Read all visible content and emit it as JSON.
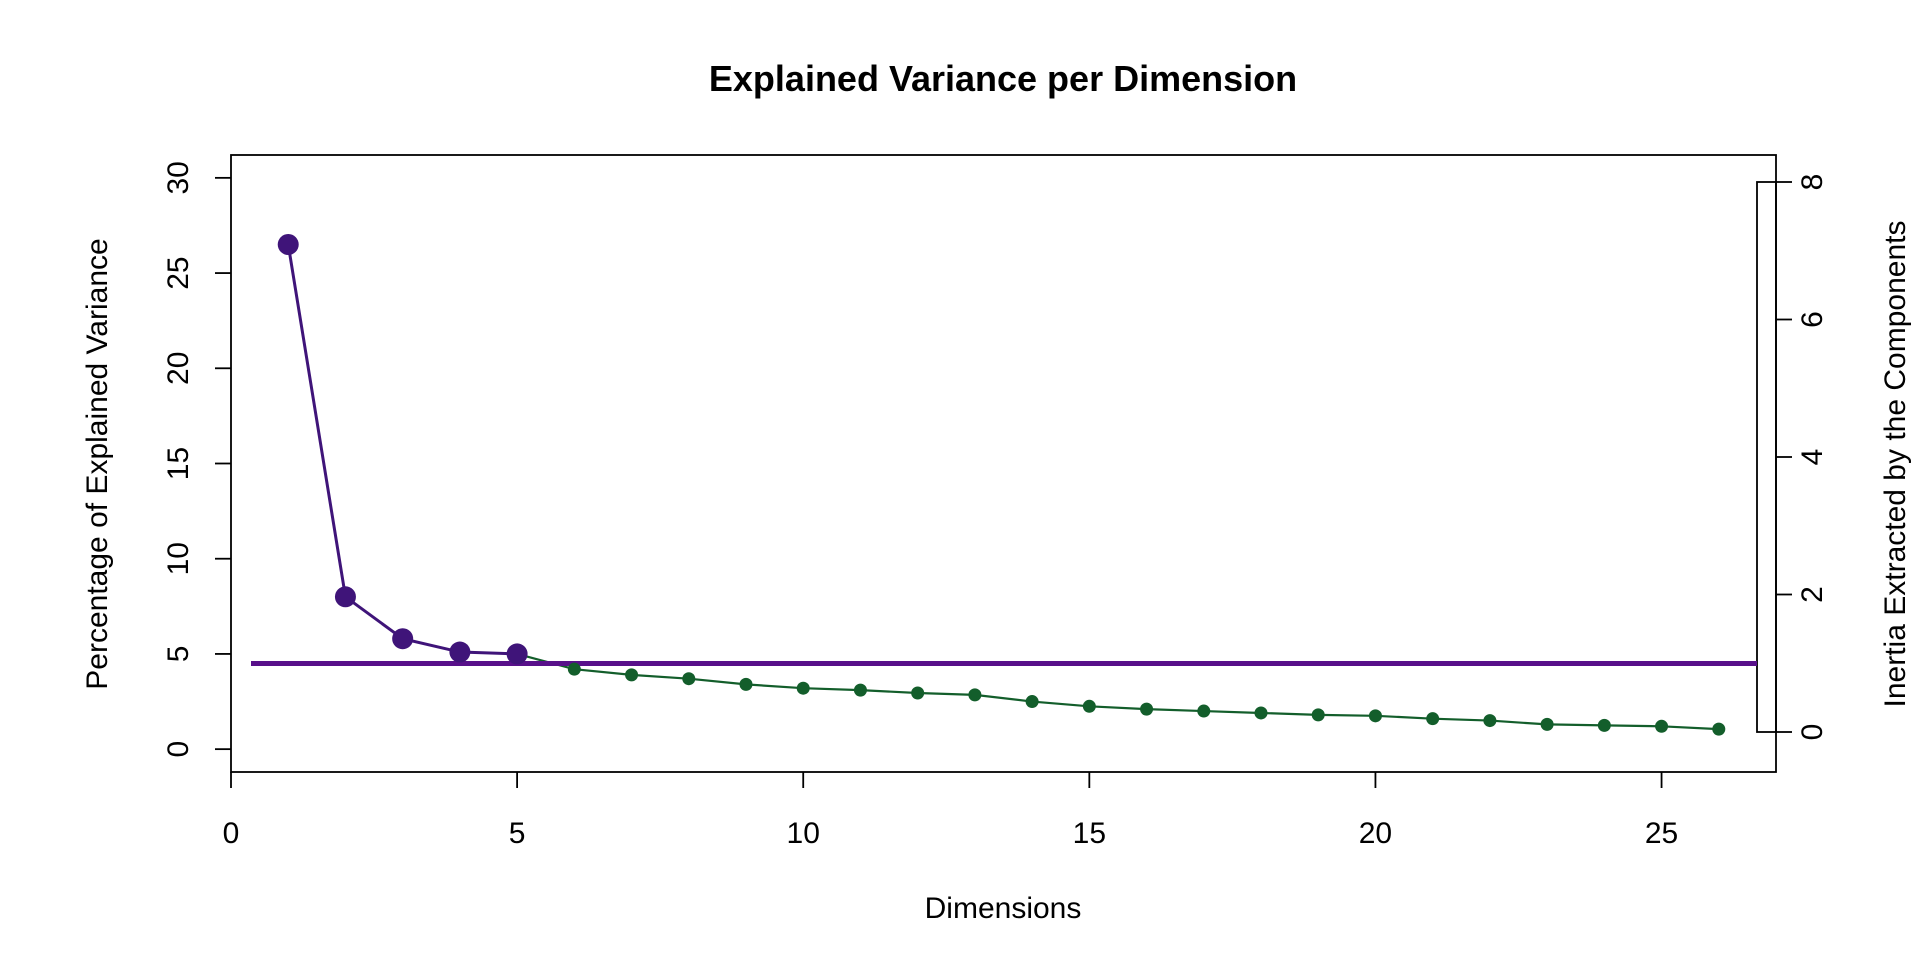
{
  "chart_data": {
    "type": "line",
    "title": "Explained Variance per Dimension",
    "xlabel": "Dimensions",
    "ylabel": "Percentage of Explained Variance",
    "y2label": "Inertia Extracted by the Components",
    "xlim": [
      0,
      27
    ],
    "ylim": [
      -1.2,
      31.2
    ],
    "y2lim": [
      0,
      8
    ],
    "xticks": [
      0,
      5,
      10,
      15,
      20,
      25
    ],
    "yticks": [
      0,
      5,
      10,
      15,
      20,
      25,
      30
    ],
    "y2ticks": [
      0,
      2,
      4,
      6,
      8
    ],
    "x": [
      1,
      2,
      3,
      4,
      5,
      6,
      7,
      8,
      9,
      10,
      11,
      12,
      13,
      14,
      15,
      16,
      17,
      18,
      19,
      20,
      21,
      22,
      23,
      24,
      25,
      26
    ],
    "values": [
      26.5,
      8.0,
      5.8,
      5.1,
      5.0,
      4.2,
      3.9,
      3.7,
      3.4,
      3.2,
      3.1,
      2.95,
      2.85,
      2.5,
      2.25,
      2.1,
      2.0,
      1.9,
      1.8,
      1.75,
      1.6,
      1.5,
      1.3,
      1.25,
      1.2,
      1.05
    ],
    "retained_dimensions": 5,
    "threshold": 4.5,
    "colors": {
      "retained": "#3f1479",
      "other": "#135e2b",
      "threshold": "#58108a"
    },
    "grid": false,
    "legend": "none"
  }
}
